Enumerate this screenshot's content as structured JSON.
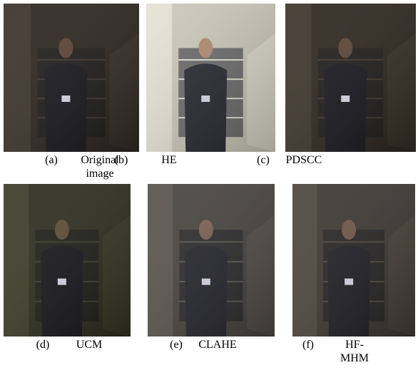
{
  "figure": {
    "panels": [
      {
        "label": "(a)",
        "caption": [
          "Original",
          "image"
        ]
      },
      {
        "label": "(b)",
        "caption": [
          "HE"
        ]
      },
      {
        "label": "(c)",
        "caption": [
          "PDSCC"
        ]
      },
      {
        "label": "(d)",
        "caption": [
          "UCM"
        ]
      },
      {
        "label": "(e)",
        "caption": [
          "CLAHE"
        ]
      },
      {
        "label": "(f)",
        "caption": [
          "HF-",
          "MHM"
        ]
      }
    ]
  }
}
